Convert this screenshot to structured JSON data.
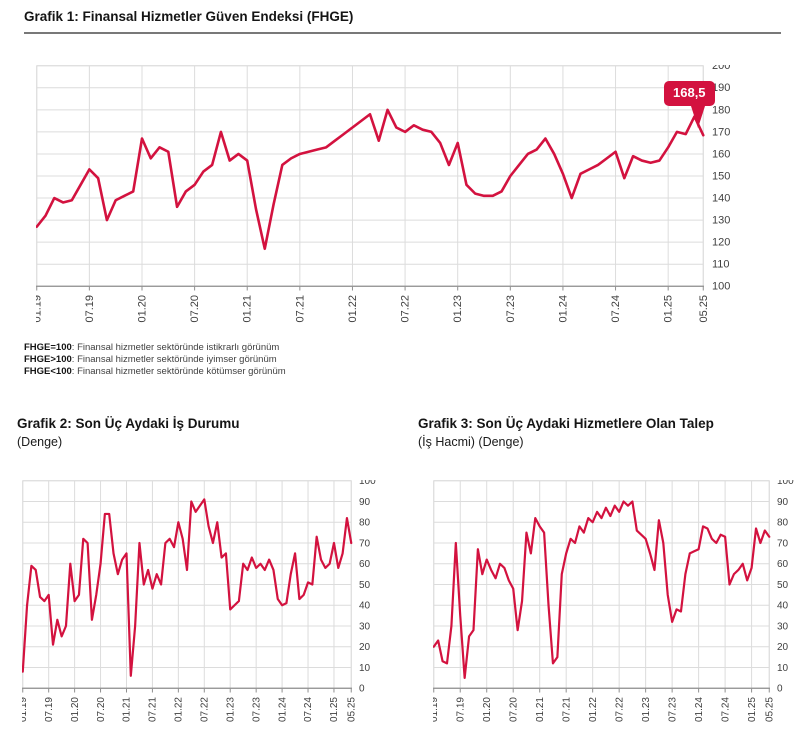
{
  "chart1": {
    "title": "Grafik 1: Finansal Hizmetler Güven Endeksi (FHGE)",
    "callout": "168,5",
    "footnotes": [
      {
        "term": "FHGE=100",
        "text": ": Finansal hizmetler sektöründe istikrarlı görünüm"
      },
      {
        "term": "FHGE>100",
        "text": ": Finansal hizmetler sektöründe iyimser görünüm"
      },
      {
        "term": "FHGE<100",
        "text": ": Finansal hizmetler sektöründe kötümser görünüm"
      }
    ]
  },
  "chart2": {
    "title": "Grafik 2: Son Üç Aydaki İş Durumu",
    "subtitle": "(Denge)"
  },
  "chart3": {
    "title": "Grafik 3: Son Üç Aydaki Hizmetlere Olan Talep",
    "subtitle": "(İş Hacmi) (Denge)"
  },
  "colors": {
    "line": "#d3123f",
    "grid": "#dcdcdc",
    "axis": "#8f8f8f",
    "tick_label": "#3f3f3f",
    "callout_bg": "#d3123f",
    "callout_text": "#ffffff"
  },
  "chart_data": [
    {
      "type": "line",
      "title": "Grafik 1: Finansal Hizmetler Güven Endeksi (FHGE)",
      "xlabel": "",
      "ylabel": "",
      "ylim": [
        100,
        200
      ],
      "yticks": [
        100,
        110,
        120,
        130,
        140,
        150,
        160,
        170,
        180,
        190,
        200
      ],
      "grid": true,
      "legend": "none",
      "last_value_label": "168,5",
      "x_tick_labels": [
        "01.19",
        "07.19",
        "01.20",
        "07.20",
        "01.21",
        "07.21",
        "01.22",
        "07.22",
        "01.23",
        "07.23",
        "01.24",
        "07.24",
        "01.25",
        "05.25"
      ],
      "x_tick_months": [
        0,
        6,
        12,
        18,
        24,
        30,
        36,
        42,
        48,
        54,
        60,
        66,
        72,
        76
      ],
      "categories": [
        "01.19",
        "02.19",
        "03.19",
        "04.19",
        "05.19",
        "06.19",
        "07.19",
        "08.19",
        "09.19",
        "10.19",
        "11.19",
        "12.19",
        "01.20",
        "02.20",
        "03.20",
        "04.20",
        "05.20",
        "06.20",
        "07.20",
        "08.20",
        "09.20",
        "10.20",
        "11.20",
        "12.20",
        "01.21",
        "02.21",
        "03.21",
        "04.21",
        "05.21",
        "06.21",
        "07.21",
        "08.21",
        "09.21",
        "10.21",
        "11.21",
        "12.21",
        "01.22",
        "02.22",
        "03.22",
        "04.22",
        "05.22",
        "06.22",
        "07.22",
        "08.22",
        "09.22",
        "10.22",
        "11.22",
        "12.22",
        "01.23",
        "02.23",
        "03.23",
        "04.23",
        "05.23",
        "06.23",
        "07.23",
        "08.23",
        "09.23",
        "10.23",
        "11.23",
        "12.23",
        "01.24",
        "02.24",
        "03.24",
        "04.24",
        "05.24",
        "06.24",
        "07.24",
        "08.24",
        "09.24",
        "10.24",
        "11.24",
        "12.24",
        "01.25",
        "02.25",
        "03.25",
        "04.25",
        "05.25"
      ],
      "values": [
        127,
        132,
        140,
        138,
        139,
        146,
        153,
        149,
        130,
        139,
        141,
        143,
        167,
        158,
        163,
        161,
        136,
        143,
        146,
        152,
        155,
        170,
        157,
        160,
        157,
        135,
        117,
        137,
        155,
        158,
        160,
        161,
        162,
        163,
        166,
        169,
        172,
        175,
        178,
        166,
        180,
        172,
        170,
        173,
        171,
        170,
        165,
        155,
        165,
        146,
        142,
        141,
        141,
        143,
        150,
        155,
        160,
        162,
        167,
        160,
        151,
        140,
        151,
        153,
        155,
        158,
        161,
        149,
        159,
        157,
        156,
        157,
        163,
        170,
        169,
        177,
        168.5
      ]
    },
    {
      "type": "line",
      "title": "Grafik 2: Son Üç Aydaki İş Durumu (Denge)",
      "xlabel": "",
      "ylabel": "",
      "ylim": [
        0,
        100
      ],
      "yticks": [
        0,
        10,
        20,
        30,
        40,
        50,
        60,
        70,
        80,
        90,
        100
      ],
      "grid": true,
      "legend": "none",
      "x_tick_labels": [
        "01.19",
        "07.19",
        "01.20",
        "07.20",
        "01.21",
        "07.21",
        "01.22",
        "07.22",
        "01.23",
        "07.23",
        "01.24",
        "07.24",
        "01.25",
        "05.25"
      ],
      "x_tick_months": [
        0,
        6,
        12,
        18,
        24,
        30,
        36,
        42,
        48,
        54,
        60,
        66,
        72,
        76
      ],
      "categories": [
        "01.19",
        "02.19",
        "03.19",
        "04.19",
        "05.19",
        "06.19",
        "07.19",
        "08.19",
        "09.19",
        "10.19",
        "11.19",
        "12.19",
        "01.20",
        "02.20",
        "03.20",
        "04.20",
        "05.20",
        "06.20",
        "07.20",
        "08.20",
        "09.20",
        "10.20",
        "11.20",
        "12.20",
        "01.21",
        "02.21",
        "03.21",
        "04.21",
        "05.21",
        "06.21",
        "07.21",
        "08.21",
        "09.21",
        "10.21",
        "11.21",
        "12.21",
        "01.22",
        "02.22",
        "03.22",
        "04.22",
        "05.22",
        "06.22",
        "07.22",
        "08.22",
        "09.22",
        "10.22",
        "11.22",
        "12.22",
        "01.23",
        "02.23",
        "03.23",
        "04.23",
        "05.23",
        "06.23",
        "07.23",
        "08.23",
        "09.23",
        "10.23",
        "11.23",
        "12.23",
        "01.24",
        "02.24",
        "03.24",
        "04.24",
        "05.24",
        "06.24",
        "07.24",
        "08.24",
        "09.24",
        "10.24",
        "11.24",
        "12.24",
        "01.25",
        "02.25",
        "03.25",
        "04.25",
        "05.25"
      ],
      "values": [
        8,
        40,
        59,
        57,
        44,
        42,
        45,
        21,
        33,
        25,
        30,
        60,
        42,
        45,
        72,
        70,
        33,
        45,
        60,
        84,
        84,
        65,
        55,
        62,
        65,
        6,
        30,
        70,
        50,
        57,
        48,
        55,
        50,
        70,
        72,
        68,
        80,
        72,
        57,
        90,
        85,
        88,
        91,
        78,
        70,
        80,
        63,
        65,
        38,
        40,
        42,
        60,
        57,
        63,
        58,
        60,
        57,
        62,
        57,
        43,
        40,
        41,
        55,
        65,
        43,
        45,
        51,
        50,
        73,
        62,
        58,
        60,
        70,
        58,
        65,
        82,
        70
      ]
    },
    {
      "type": "line",
      "title": "Grafik 3: Son Üç Aydaki Hizmetlere Olan Talep (İş Hacmi) (Denge)",
      "xlabel": "",
      "ylabel": "",
      "ylim": [
        0,
        100
      ],
      "yticks": [
        0,
        10,
        20,
        30,
        40,
        50,
        60,
        70,
        80,
        90,
        100
      ],
      "grid": true,
      "legend": "none",
      "x_tick_labels": [
        "01.19",
        "07.19",
        "01.20",
        "07.20",
        "01.21",
        "07.21",
        "01.22",
        "07.22",
        "01.23",
        "07.23",
        "01.24",
        "07.24",
        "01.25",
        "05.25"
      ],
      "x_tick_months": [
        0,
        6,
        12,
        18,
        24,
        30,
        36,
        42,
        48,
        54,
        60,
        66,
        72,
        76
      ],
      "categories": [
        "01.19",
        "02.19",
        "03.19",
        "04.19",
        "05.19",
        "06.19",
        "07.19",
        "08.19",
        "09.19",
        "10.19",
        "11.19",
        "12.19",
        "01.20",
        "02.20",
        "03.20",
        "04.20",
        "05.20",
        "06.20",
        "07.20",
        "08.20",
        "09.20",
        "10.20",
        "11.20",
        "12.20",
        "01.21",
        "02.21",
        "03.21",
        "04.21",
        "05.21",
        "06.21",
        "07.21",
        "08.21",
        "09.21",
        "10.21",
        "11.21",
        "12.21",
        "01.22",
        "02.22",
        "03.22",
        "04.22",
        "05.22",
        "06.22",
        "07.22",
        "08.22",
        "09.22",
        "10.22",
        "11.22",
        "12.22",
        "01.23",
        "02.23",
        "03.23",
        "04.23",
        "05.23",
        "06.23",
        "07.23",
        "08.23",
        "09.23",
        "10.23",
        "11.23",
        "12.23",
        "01.24",
        "02.24",
        "03.24",
        "04.24",
        "05.24",
        "06.24",
        "07.24",
        "08.24",
        "09.24",
        "10.24",
        "11.24",
        "12.24",
        "01.25",
        "02.25",
        "03.25",
        "04.25",
        "05.25"
      ],
      "values": [
        20,
        23,
        13,
        12,
        30,
        70,
        35,
        5,
        25,
        28,
        67,
        55,
        62,
        57,
        53,
        60,
        58,
        52,
        48,
        28,
        42,
        75,
        65,
        82,
        78,
        75,
        40,
        12,
        15,
        55,
        65,
        72,
        70,
        78,
        75,
        82,
        80,
        85,
        82,
        87,
        83,
        88,
        85,
        90,
        88,
        90,
        76,
        74,
        72,
        65,
        57,
        81,
        70,
        45,
        32,
        38,
        37,
        55,
        65,
        66,
        67,
        78,
        77,
        72,
        70,
        74,
        73,
        50,
        55,
        57,
        60,
        52,
        58,
        77,
        70,
        76,
        73
      ]
    }
  ]
}
